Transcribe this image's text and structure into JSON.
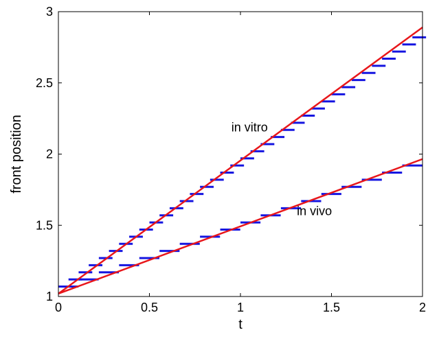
{
  "chart_data": {
    "type": "line",
    "title": "",
    "xlabel": "t",
    "ylabel": "front position",
    "xlim": [
      0,
      2
    ],
    "ylim": [
      1,
      3
    ],
    "xticks": [
      "0",
      "0.5",
      "1",
      "1.5",
      "2"
    ],
    "yticks": [
      "1",
      "1.5",
      "2",
      "2.5",
      "3"
    ],
    "grid": false,
    "box": true,
    "annotations": [
      {
        "text": "in vitro",
        "x": 0.95,
        "y": 2.16
      },
      {
        "text": "in vivo",
        "x": 1.31,
        "y": 1.57
      }
    ],
    "series": [
      {
        "color": "#e8161b",
        "style": "line",
        "x": [
          0,
          2
        ],
        "y": [
          1.02,
          2.89
        ]
      },
      {
        "color": "#e8161b",
        "style": "line",
        "x": [
          0,
          2
        ],
        "y": [
          1.02,
          1.965
        ]
      },
      {
        "color": "#1414e0",
        "style": "steps",
        "step_width": 0.075,
        "x_start": 0.0,
        "x_end": 2.0,
        "y_start": 1.07,
        "y_step": 0.05,
        "count": 36
      },
      {
        "color": "#1414e0",
        "style": "steps",
        "step_width": 0.11,
        "x_start": 0.0,
        "x_end": 2.0,
        "y_start": 1.07,
        "y_step": 0.05,
        "count": 18
      }
    ]
  }
}
